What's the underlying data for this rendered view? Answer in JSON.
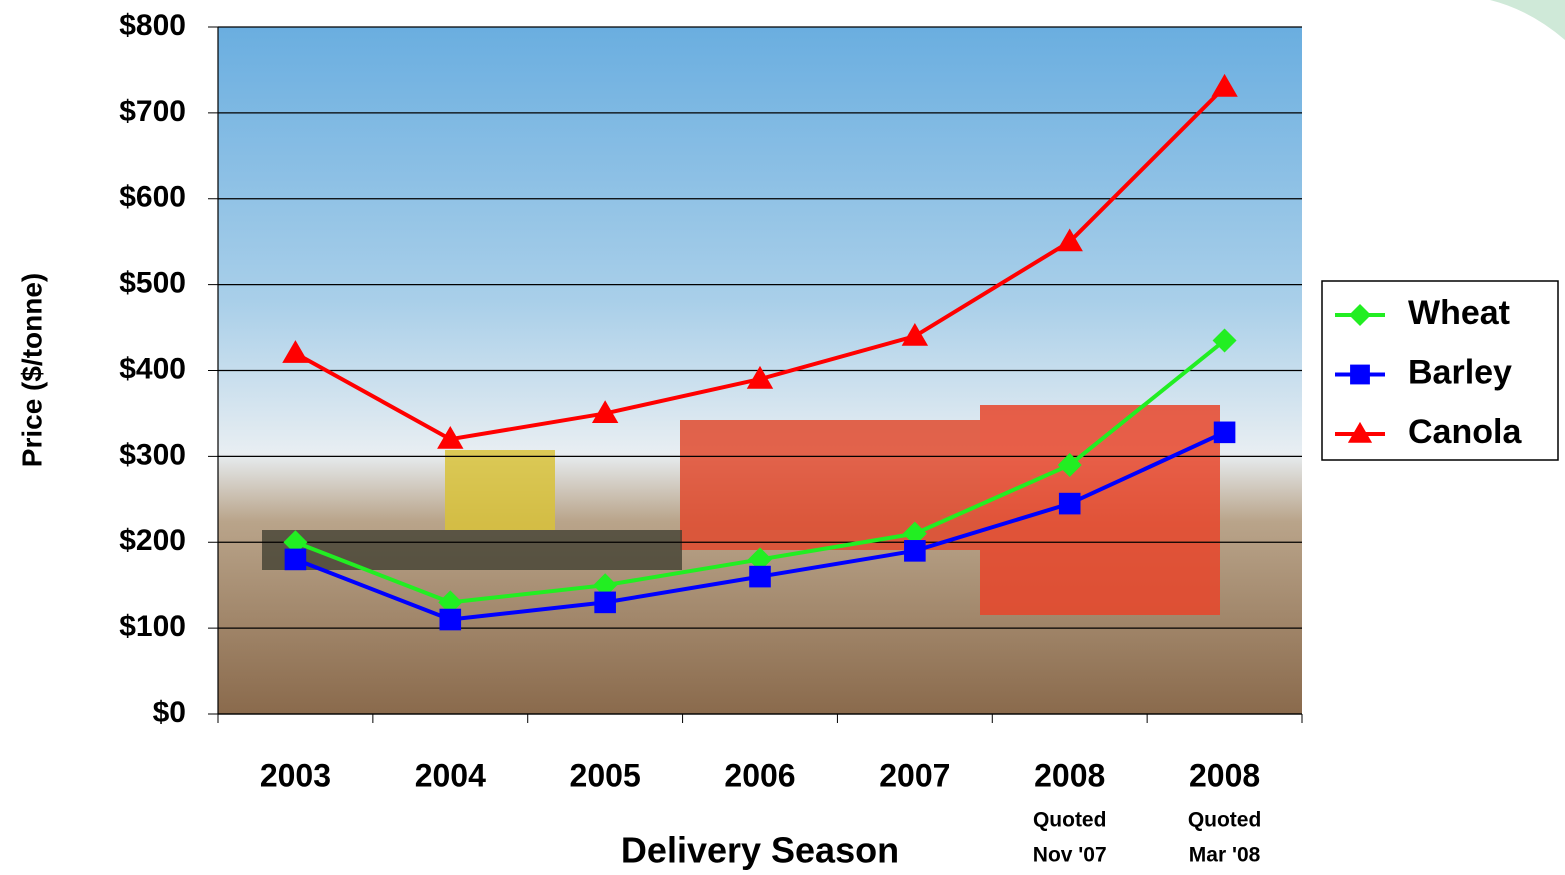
{
  "chart_data": {
    "type": "line",
    "categories": [
      "2003",
      "2004",
      "2005",
      "2006",
      "2007",
      "2008",
      "2008"
    ],
    "category_notes": [
      null,
      null,
      null,
      null,
      null,
      [
        "Quoted",
        "Nov '07"
      ],
      [
        "Quoted",
        "Mar '08"
      ]
    ],
    "x_label": "Delivery Season",
    "y_label": "Price ($/tonne)",
    "ylim": [
      0,
      800
    ],
    "yticks": [
      {
        "value": 0,
        "label": "$0"
      },
      {
        "value": 100,
        "label": "$100"
      },
      {
        "value": 200,
        "label": "$200"
      },
      {
        "value": 300,
        "label": "$300"
      },
      {
        "value": 400,
        "label": "$400"
      },
      {
        "value": 500,
        "label": "$500"
      },
      {
        "value": 600,
        "label": "$600"
      },
      {
        "value": 700,
        "label": "$700"
      },
      {
        "value": 800,
        "label": "$800"
      }
    ],
    "grid": true,
    "legend": "right",
    "series": [
      {
        "name": "Wheat",
        "color": "#22ee22",
        "marker": "diamond",
        "values": [
          200,
          130,
          150,
          180,
          210,
          290,
          435
        ]
      },
      {
        "name": "Barley",
        "color": "#0000ff",
        "marker": "square",
        "values": [
          180,
          110,
          130,
          160,
          190,
          245,
          328
        ]
      },
      {
        "name": "Canola",
        "color": "#ff0000",
        "marker": "triangle",
        "values": [
          420,
          320,
          350,
          390,
          440,
          550,
          730
        ]
      }
    ]
  }
}
